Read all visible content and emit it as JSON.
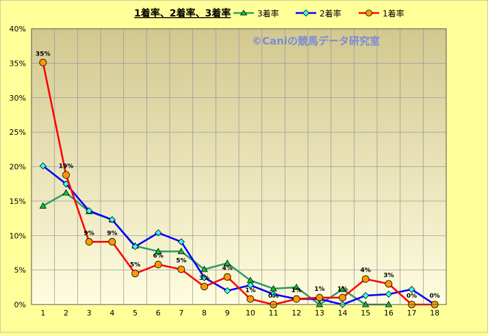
{
  "chart_data": {
    "type": "line",
    "title": "1着率、2着率、3着率",
    "watermark": "©Caniの競馬データ研究室",
    "x": [
      1,
      2,
      3,
      4,
      5,
      6,
      7,
      8,
      9,
      10,
      11,
      12,
      13,
      14,
      15,
      16,
      17,
      18
    ],
    "ylim": [
      0,
      40
    ],
    "yticks": [
      0,
      5,
      10,
      15,
      20,
      25,
      30,
      35,
      40
    ],
    "ytick_labels": [
      "0%",
      "5%",
      "10%",
      "15%",
      "20%",
      "25%",
      "30%",
      "35%",
      "40%"
    ],
    "grid": true,
    "legend": "top",
    "colors": {
      "background": "#ffff99",
      "plot_top": "#d2c88f",
      "plot_bottom": "#fffde0",
      "grid": "#9a9a9a",
      "watermark": "#7a8ad8"
    },
    "series": [
      {
        "name": "3着率",
        "key": "s3",
        "color": "#339966",
        "marker": "triangle",
        "marker_fill": "#00cc33",
        "values": [
          14.3,
          16.2,
          13.5,
          12.3,
          8.5,
          7.7,
          7.7,
          5.1,
          6.0,
          3.5,
          2.3,
          2.5,
          0.0,
          2.2,
          0.0,
          0.0,
          null,
          null
        ]
      },
      {
        "name": "2着率",
        "key": "s2",
        "color": "#0000ff",
        "marker": "diamond",
        "marker_fill": "#33ffff",
        "values": [
          20.1,
          17.5,
          13.6,
          12.3,
          8.4,
          10.4,
          9.1,
          3.9,
          2.0,
          2.8,
          1.5,
          0.8,
          0.8,
          0.0,
          1.3,
          1.5,
          2.2,
          0.0
        ]
      },
      {
        "name": "1着率",
        "key": "s1",
        "color": "#ff0000",
        "marker": "circle",
        "marker_fill": "#ff9900",
        "values": [
          35.1,
          18.8,
          9.1,
          9.1,
          4.5,
          5.8,
          5.1,
          2.6,
          4.0,
          0.8,
          0.0,
          0.8,
          1.0,
          1.0,
          3.7,
          3.0,
          0.0,
          0.0
        ]
      }
    ],
    "data_labels": {
      "series": "1着率",
      "labels": [
        "35%",
        "19%",
        "9%",
        "9%",
        "5%",
        "6%",
        "5%",
        "3%",
        "4%",
        "1%",
        "0%",
        "1%",
        "1%",
        "1%",
        "4%",
        "3%",
        "0%",
        "0%"
      ]
    }
  }
}
